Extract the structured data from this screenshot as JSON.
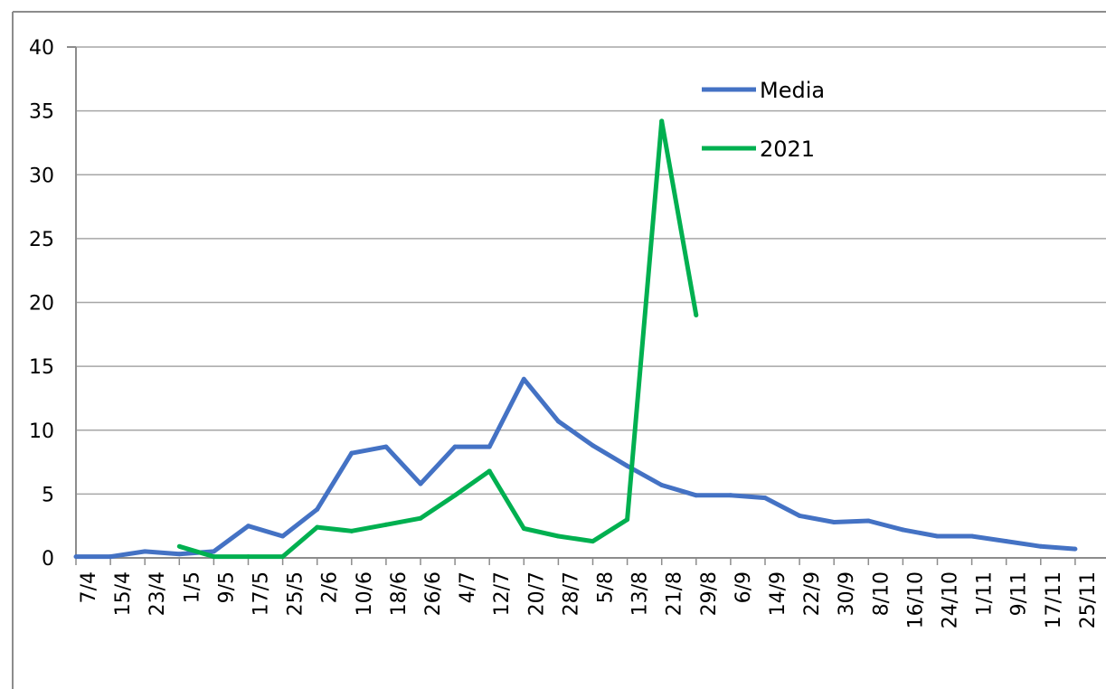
{
  "chart_data": {
    "type": "line",
    "title": "",
    "xlabel": "",
    "ylabel": "",
    "ylim": [
      0,
      40
    ],
    "yticks": [
      0,
      5,
      10,
      15,
      20,
      25,
      30,
      35,
      40
    ],
    "grid": true,
    "legend_position": "top-right",
    "categories": [
      "7/4",
      "15/4",
      "23/4",
      "1/5",
      "9/5",
      "17/5",
      "25/5",
      "2/6",
      "10/6",
      "18/6",
      "26/6",
      "4/7",
      "12/7",
      "20/7",
      "28/7",
      "5/8",
      "13/8",
      "21/8",
      "29/8",
      "6/9",
      "14/9",
      "22/9",
      "30/9",
      "8/10",
      "16/10",
      "24/10",
      "1/11",
      "9/11",
      "17/11",
      "25/11"
    ],
    "series": [
      {
        "name": "Media",
        "color": "#4472C4",
        "values": [
          0.1,
          0.1,
          0.5,
          0.3,
          0.5,
          2.5,
          1.7,
          3.8,
          8.2,
          8.7,
          5.8,
          8.7,
          8.7,
          14.0,
          10.7,
          8.8,
          7.2,
          5.7,
          4.9,
          4.9,
          4.7,
          3.3,
          2.8,
          2.9,
          2.2,
          1.7,
          1.7,
          1.3,
          0.9,
          0.7
        ]
      },
      {
        "name": "2021",
        "color": "#00B050",
        "values": [
          null,
          null,
          null,
          0.9,
          0.1,
          0.1,
          0.1,
          2.4,
          2.1,
          2.6,
          3.1,
          4.9,
          6.8,
          2.3,
          1.7,
          1.3,
          3.0,
          34.2,
          19.0,
          null,
          null,
          null,
          null,
          null,
          null,
          null,
          null,
          null,
          null,
          null
        ]
      }
    ]
  }
}
